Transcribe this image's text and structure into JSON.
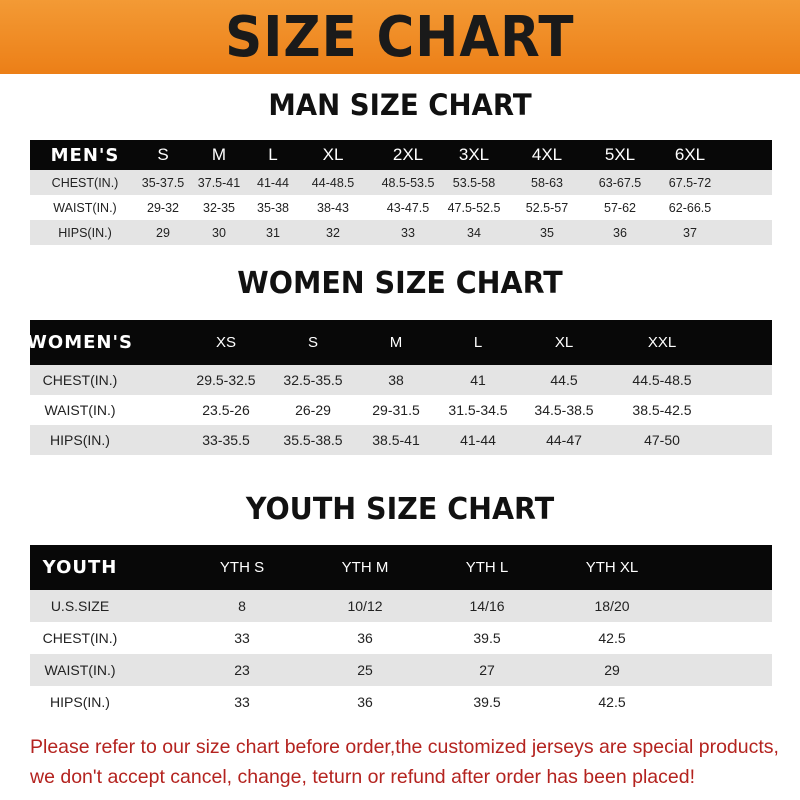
{
  "banner_title": "SIZE CHART",
  "men": {
    "title": "MAN SIZE CHART",
    "header": [
      "MEN'S",
      "S",
      "M",
      "L",
      "XL",
      "2XL",
      "3XL",
      "4XL",
      "5XL",
      "6XL"
    ],
    "rows": [
      [
        "CHEST(IN.)",
        "35-37.5",
        "37.5-41",
        "41-44",
        "44-48.5",
        "48.5-53.5",
        "53.5-58",
        "58-63",
        "63-67.5",
        "67.5-72"
      ],
      [
        "WAIST(IN.)",
        "29-32",
        "32-35",
        "35-38",
        "38-43",
        "43-47.5",
        "47.5-52.5",
        "52.5-57",
        "57-62",
        "62-66.5"
      ],
      [
        "HIPS(IN.)",
        "29",
        "30",
        "31",
        "32",
        "33",
        "34",
        "35",
        "36",
        "37"
      ]
    ]
  },
  "women": {
    "title": "WOMEN SIZE CHART",
    "header": [
      "WOMEN'S",
      "XS",
      "S",
      "M",
      "L",
      "XL",
      "XXL"
    ],
    "rows": [
      [
        "CHEST(IN.)",
        "29.5-32.5",
        "32.5-35.5",
        "38",
        "41",
        "44.5",
        "44.5-48.5"
      ],
      [
        "WAIST(IN.)",
        "23.5-26",
        "26-29",
        "29-31.5",
        "31.5-34.5",
        "34.5-38.5",
        "38.5-42.5"
      ],
      [
        "HIPS(IN.)",
        "33-35.5",
        "35.5-38.5",
        "38.5-41",
        "41-44",
        "44-47",
        "47-50"
      ]
    ]
  },
  "youth": {
    "title": "YOUTH SIZE CHART",
    "header": [
      "YOUTH",
      "YTH S",
      "YTH M",
      "YTH L",
      "YTH XL"
    ],
    "rows": [
      [
        "U.S.SIZE",
        "8",
        "10/12",
        "14/16",
        "18/20"
      ],
      [
        "CHEST(IN.)",
        "33",
        "36",
        "39.5",
        "42.5"
      ],
      [
        "WAIST(IN.)",
        "23",
        "25",
        "27",
        "29"
      ],
      [
        "HIPS(IN.)",
        "33",
        "36",
        "39.5",
        "42.5"
      ]
    ]
  },
  "notice": {
    "line1": "Please refer to our size chart before order,the customized jerseys are special products,",
    "line2": "we don't accept cancel, change, teturn or refund after order has been placed!"
  },
  "colors": {
    "banner": "#ec7f17",
    "header_bg": "#080808",
    "row_grey": "#e4e4e4",
    "notice_text": "#b4231f"
  }
}
